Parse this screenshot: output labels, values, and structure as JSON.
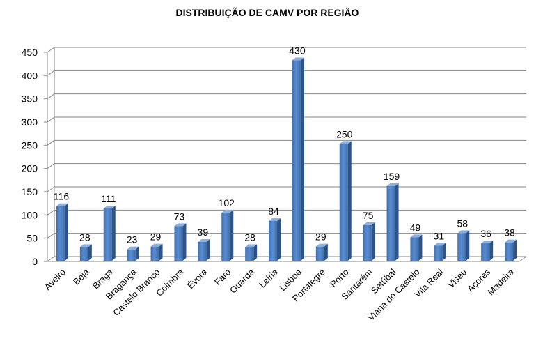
{
  "chart_data": {
    "type": "bar",
    "title": "DISTRIBUIÇÃO DE CAMV POR REGIÃO",
    "xlabel": "",
    "ylabel": "",
    "ylim": [
      0,
      450
    ],
    "yticks": [
      0,
      50,
      100,
      150,
      200,
      250,
      300,
      350,
      400,
      450
    ],
    "grid": true,
    "legend": "none",
    "bar_color": "#4F81BD",
    "categories": [
      "Aveiro",
      "Beja",
      "Braga",
      "Bragança",
      "Castelo Branco",
      "Coimbra",
      "Évora",
      "Faro",
      "Guarda",
      "Leiria",
      "Lisboa",
      "Portalegre",
      "Porto",
      "Santarém",
      "Setúbal",
      "Viana do Castelo",
      "Vila Real",
      "Viseu",
      "Açores",
      "Madeira"
    ],
    "values": [
      116,
      28,
      111,
      23,
      29,
      73,
      39,
      102,
      28,
      84,
      430,
      29,
      250,
      75,
      159,
      49,
      31,
      58,
      36,
      38
    ]
  }
}
